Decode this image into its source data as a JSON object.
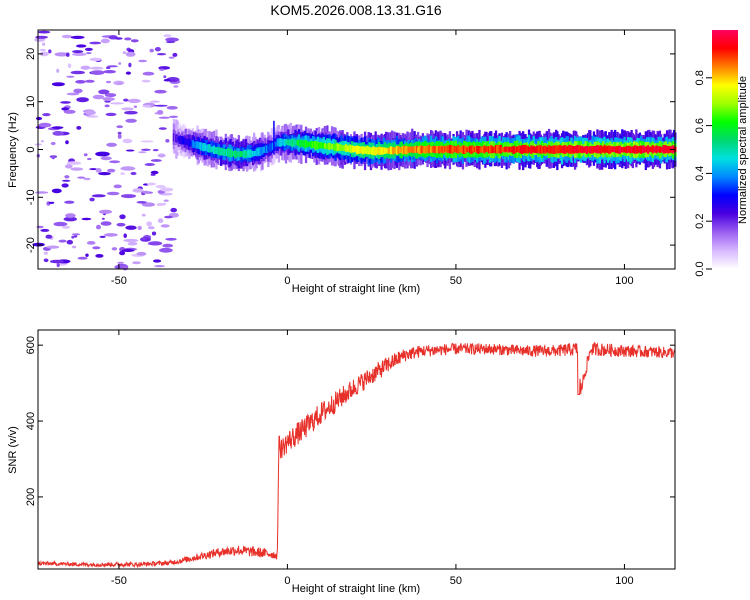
{
  "figure_title": "KOM5.2026.008.13.31.G16",
  "chart_data": [
    {
      "type": "heatmap",
      "title": "KOM5.2026.008.13.31.G16",
      "xlabel": "Height of straight line (km)",
      "ylabel": "Frequency (Hz)",
      "xlim": [
        -74,
        115
      ],
      "ylim": [
        -25,
        25
      ],
      "x_ticks": [
        -50,
        0,
        50,
        100
      ],
      "x_tick_labels": [
        "-50",
        "0",
        "50",
        "100"
      ],
      "y_ticks": [
        -20,
        -10,
        0,
        10,
        20
      ],
      "y_tick_labels": [
        "-20",
        "-10",
        "0",
        "10",
        "20"
      ],
      "colorbar": {
        "label": "Normalized spectral amplitude",
        "range": [
          0,
          1
        ],
        "ticks": [
          0.0,
          0.2,
          0.4,
          0.6,
          0.8
        ],
        "tick_labels": [
          "0.0",
          "0.2",
          "0.4",
          "0.6",
          "0.8"
        ],
        "colormap": [
          "#ffffff",
          "#d8b8ff",
          "#9a60f0",
          "#4a00e0",
          "#0000ff",
          "#0088ff",
          "#00e0e0",
          "#00d870",
          "#00ff00",
          "#a0ff00",
          "#ffff00",
          "#ff8000",
          "#ff0000",
          "#ff0060"
        ]
      },
      "ridge": {
        "description": "dominant frequency line",
        "x": [
          -34,
          -30,
          -25,
          -20,
          -15,
          -10,
          -5,
          -3,
          0,
          5,
          10,
          15,
          20,
          25,
          30,
          40,
          50,
          60,
          70,
          80,
          90,
          100,
          115
        ],
        "freq": [
          2.5,
          1.5,
          0.5,
          -0.5,
          -1.0,
          -0.8,
          0.5,
          1.5,
          1.5,
          1.2,
          0.8,
          0.4,
          0.0,
          -0.3,
          -0.2,
          0.0,
          0.0,
          0.0,
          0.0,
          0.0,
          0.0,
          0.0,
          0.0
        ],
        "amplitude": [
          0.2,
          0.3,
          0.45,
          0.5,
          0.55,
          0.45,
          0.35,
          0.4,
          0.5,
          0.6,
          0.65,
          0.7,
          0.75,
          0.75,
          0.8,
          0.85,
          0.88,
          0.9,
          0.92,
          0.93,
          0.94,
          0.95,
          0.95
        ]
      },
      "noise_region": {
        "x_range": [
          -74,
          -33
        ],
        "freq_range": [
          -25,
          25
        ],
        "amplitude": 0.15
      }
    },
    {
      "type": "line",
      "xlabel": "Height of straight line (km)",
      "ylabel": "SNR (v/v)",
      "xlim": [
        -74,
        115
      ],
      "ylim": [
        10,
        640
      ],
      "x_ticks": [
        -50,
        0,
        50,
        100
      ],
      "x_tick_labels": [
        "-50",
        "0",
        "50",
        "100"
      ],
      "y_ticks": [
        200,
        400,
        600
      ],
      "y_tick_labels": [
        "200",
        "400",
        "600"
      ],
      "series": [
        {
          "name": "SNR",
          "color": "#e8302a",
          "x": [
            -74,
            -60,
            -45,
            -35,
            -30,
            -25,
            -20,
            -15,
            -10,
            -5,
            -3,
            -2.5,
            0,
            5,
            10,
            15,
            20,
            25,
            30,
            35,
            40,
            50,
            60,
            70,
            80,
            86,
            87,
            90,
            100,
            115
          ],
          "y": [
            25,
            22,
            22,
            26,
            35,
            45,
            55,
            60,
            55,
            50,
            45,
            320,
            345,
            380,
            420,
            455,
            490,
            520,
            550,
            575,
            585,
            590,
            590,
            585,
            585,
            590,
            480,
            590,
            585,
            580
          ],
          "noise": [
            5,
            5,
            6,
            6,
            8,
            10,
            12,
            14,
            14,
            12,
            10,
            25,
            30,
            30,
            30,
            28,
            26,
            24,
            22,
            18,
            16,
            15,
            15,
            15,
            16,
            18,
            18,
            18,
            16,
            15
          ]
        }
      ]
    }
  ]
}
